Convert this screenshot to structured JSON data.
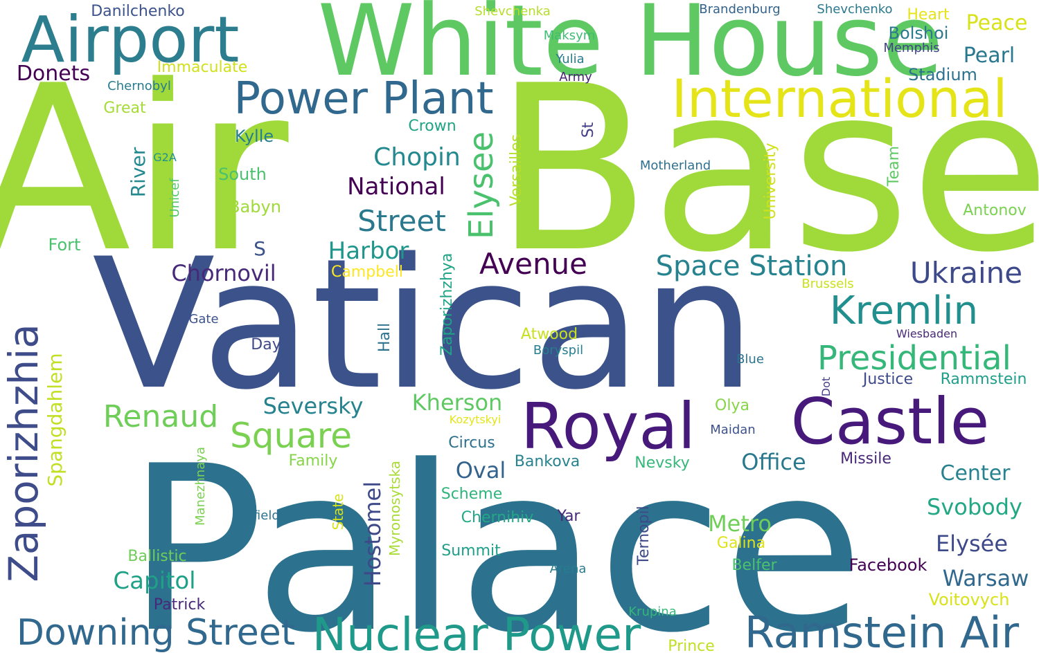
{
  "words": [
    {
      "text": "Palace",
      "color": "#2c728e"
    },
    {
      "text": "Air",
      "color": "#9fda3a"
    },
    {
      "text": "Base",
      "color": "#9fda3a"
    },
    {
      "text": "Vatican",
      "color": "#3b528b"
    },
    {
      "text": "White House",
      "color": "#5ec962"
    },
    {
      "text": "Airport",
      "color": "#2c7e8e"
    },
    {
      "text": "Royal",
      "color": "#46197a"
    },
    {
      "text": "Castle",
      "color": "#46197a"
    },
    {
      "text": "International",
      "color": "#e5e419"
    },
    {
      "text": "Power Plant",
      "color": "#31688e"
    },
    {
      "text": "Nuclear Power",
      "color": "#1f9a8a"
    },
    {
      "text": "Ramstein Air",
      "color": "#31688e"
    },
    {
      "text": "Downing Street",
      "color": "#31688e"
    },
    {
      "text": "Zaporizhzhia",
      "color": "#3e4c8a"
    },
    {
      "text": "Kremlin",
      "color": "#218f8d"
    },
    {
      "text": "Presidential",
      "color": "#35b779"
    },
    {
      "text": "Space Station",
      "color": "#26828e"
    },
    {
      "text": "Elysee",
      "color": "#4ac16d"
    },
    {
      "text": "Ukraine",
      "color": "#3e4989"
    },
    {
      "text": "Square",
      "color": "#7ad151"
    },
    {
      "text": "Renaud",
      "color": "#6ece58"
    },
    {
      "text": "Avenue",
      "color": "#440154"
    },
    {
      "text": "Street",
      "color": "#2a788e"
    },
    {
      "text": "Chopin",
      "color": "#23898e"
    },
    {
      "text": "National",
      "color": "#440154"
    },
    {
      "text": "Harbor",
      "color": "#1f968b"
    },
    {
      "text": "Chornovil",
      "color": "#482878"
    },
    {
      "text": "Kherson",
      "color": "#5ec962"
    },
    {
      "text": "Seversky",
      "color": "#26828e"
    },
    {
      "text": "Capitol",
      "color": "#1fa187"
    },
    {
      "text": "Metro",
      "color": "#6ece58"
    },
    {
      "text": "Svobody",
      "color": "#22a884"
    },
    {
      "text": "Elysée",
      "color": "#3e4989"
    },
    {
      "text": "Warsaw",
      "color": "#31688e"
    },
    {
      "text": "Center",
      "color": "#26828e"
    },
    {
      "text": "Office",
      "color": "#2a788e"
    },
    {
      "text": "Oval",
      "color": "#33638d"
    },
    {
      "text": "Hostomel",
      "color": "#3e4989"
    },
    {
      "text": "Spangdahlem",
      "color": "#c2df23"
    },
    {
      "text": "Pearl",
      "color": "#2a788e"
    },
    {
      "text": "Peace",
      "color": "#d8e219"
    },
    {
      "text": "Bolshoi",
      "color": "#2a788e"
    },
    {
      "text": "Stadium",
      "color": "#2c728e"
    },
    {
      "text": "Donets",
      "color": "#440154"
    },
    {
      "text": "Danilchenko",
      "color": "#3b528b"
    },
    {
      "text": "Immaculate",
      "color": "#d0e11c"
    },
    {
      "text": "Chernobyl",
      "color": "#287c8e"
    },
    {
      "text": "Great",
      "color": "#a5db36"
    },
    {
      "text": "Shevchenka",
      "color": "#b5de2b"
    },
    {
      "text": "Brandenburg",
      "color": "#33638d"
    },
    {
      "text": "Shevchenko",
      "color": "#2a788e"
    },
    {
      "text": "Heart",
      "color": "#e5e419"
    },
    {
      "text": "Memphis",
      "color": "#414487"
    },
    {
      "text": "Maksym",
      "color": "#3fbc73"
    },
    {
      "text": "Yulia",
      "color": "#287c8e"
    },
    {
      "text": "Army",
      "color": "#482475"
    },
    {
      "text": "Crown",
      "color": "#20a486"
    },
    {
      "text": "Kylle",
      "color": "#277f8e"
    },
    {
      "text": "River",
      "color": "#23898e"
    },
    {
      "text": "G2A",
      "color": "#21918c"
    },
    {
      "text": "South",
      "color": "#4ac16d"
    },
    {
      "text": "Unicef",
      "color": "#54c568"
    },
    {
      "text": "Babyn",
      "color": "#a0da39"
    },
    {
      "text": "Fort",
      "color": "#4ac16d"
    },
    {
      "text": "S",
      "color": "#3b528b"
    },
    {
      "text": "Campbell",
      "color": "#fde725"
    },
    {
      "text": "Versailles",
      "color": "#b5de2b"
    },
    {
      "text": "St",
      "color": "#433e85"
    },
    {
      "text": "Motherland",
      "color": "#2d708e"
    },
    {
      "text": "University",
      "color": "#d0e11c"
    },
    {
      "text": "Team",
      "color": "#5ec962"
    },
    {
      "text": "Antonov",
      "color": "#7ad151"
    },
    {
      "text": "Brussels",
      "color": "#cae11f"
    },
    {
      "text": "Zaporizhzhya",
      "color": "#20a486"
    },
    {
      "text": "Gate",
      "color": "#3b528b"
    },
    {
      "text": "Day",
      "color": "#3e4989"
    },
    {
      "text": "Hall",
      "color": "#2c728e"
    },
    {
      "text": "Atwood",
      "color": "#c8e020"
    },
    {
      "text": "Boryspil",
      "color": "#277f8e"
    },
    {
      "text": "Wiesbaden",
      "color": "#482878"
    },
    {
      "text": "Blue",
      "color": "#2c728e"
    },
    {
      "text": "Justice",
      "color": "#3e4989"
    },
    {
      "text": "Rammstein",
      "color": "#1f9e89"
    },
    {
      "text": "Dot",
      "color": "#433e85"
    },
    {
      "text": "Olya",
      "color": "#86d549"
    },
    {
      "text": "Kozytskyi",
      "color": "#e5e419"
    },
    {
      "text": "Maidan",
      "color": "#3b528b"
    },
    {
      "text": "Circus",
      "color": "#2d708e"
    },
    {
      "text": "Missile",
      "color": "#482878"
    },
    {
      "text": "Family",
      "color": "#86d549"
    },
    {
      "text": "Bankova",
      "color": "#26828e"
    },
    {
      "text": "Nevsky",
      "color": "#35b779"
    },
    {
      "text": "Manezhnaya",
      "color": "#7ad151"
    },
    {
      "text": "Myronosytska",
      "color": "#a8db34"
    },
    {
      "text": "Scheme",
      "color": "#2fb47c"
    },
    {
      "text": "Airfield",
      "color": "#2c728e"
    },
    {
      "text": "State",
      "color": "#d8e219"
    },
    {
      "text": "Chernihiv",
      "color": "#22a884"
    },
    {
      "text": "Yar",
      "color": "#482878"
    },
    {
      "text": "Ternopil",
      "color": "#3e4989"
    },
    {
      "text": "Galina",
      "color": "#dde318"
    },
    {
      "text": "Ballistic",
      "color": "#6ece58"
    },
    {
      "text": "Summit",
      "color": "#1f9e89"
    },
    {
      "text": "Belfer",
      "color": "#4ac16d"
    },
    {
      "text": "Facebook",
      "color": "#440154"
    },
    {
      "text": "Arena",
      "color": "#287c8e"
    },
    {
      "text": "Patrick",
      "color": "#482878"
    },
    {
      "text": "Voitovych",
      "color": "#d8e219"
    },
    {
      "text": "Krupina",
      "color": "#35b779"
    },
    {
      "text": "Prince",
      "color": "#c2df23"
    }
  ]
}
